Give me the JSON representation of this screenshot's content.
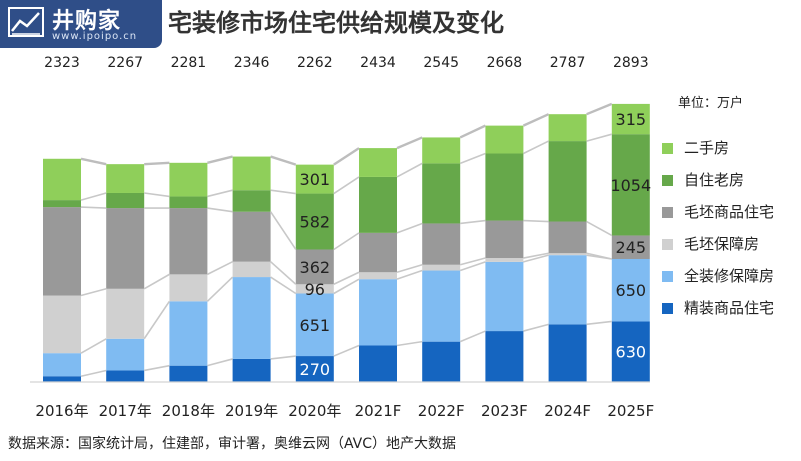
{
  "logo": {
    "text": "井购家",
    "sub": "www.ipoipo.cn"
  },
  "title": "宅装修市场住宅供给规模及变化",
  "unit_label": "单位：万户",
  "source_note": "数据来源：国家统计局，住建部，审计署，奥维云网（AVC）地产大数据",
  "chart_data": {
    "type": "bar",
    "stacked": true,
    "categories": [
      "2016年",
      "2017年",
      "2018年",
      "2019年",
      "2020年",
      "2021F",
      "2022F",
      "2023F",
      "2024F",
      "2025F"
    ],
    "totals": [
      2323,
      2267,
      2281,
      2346,
      2262,
      2434,
      2545,
      2668,
      2787,
      2893
    ],
    "series": [
      {
        "name": "精装商品住宅",
        "color": "#1565c0",
        "values": [
          60,
          120,
          170,
          240,
          270,
          380,
          420,
          530,
          600,
          630
        ]
      },
      {
        "name": "全装修保障房",
        "color": "#7fbbf2",
        "values": [
          240,
          330,
          670,
          852,
          651,
          690,
          740,
          720,
          720,
          650
        ]
      },
      {
        "name": "毛坯保障房",
        "color": "#d0d0d0",
        "values": [
          600,
          520,
          280,
          160,
          96,
          72,
          60,
          40,
          20,
          0
        ]
      },
      {
        "name": "毛坯商品住宅",
        "color": "#999999",
        "values": [
          920,
          840,
          690,
          520,
          362,
          410,
          430,
          390,
          330,
          245
        ]
      },
      {
        "name": "自住老房",
        "color": "#66a84a",
        "values": [
          73,
          157,
          121,
          224,
          582,
          582,
          625,
          698,
          837,
          1054
        ]
      },
      {
        "name": "二手房",
        "color": "#8fcf5a",
        "values": [
          430,
          300,
          350,
          350,
          301,
          300,
          270,
          290,
          280,
          315
        ]
      }
    ],
    "data_labels": [
      {
        "category": "2020年",
        "series": "精装商品住宅",
        "value": 270
      },
      {
        "category": "2020年",
        "series": "全装修保障房",
        "value": 651
      },
      {
        "category": "2020年",
        "series": "毛坯保障房",
        "value": 96
      },
      {
        "category": "2020年",
        "series": "毛坯商品住宅",
        "value": 362
      },
      {
        "category": "2020年",
        "series": "自住老房",
        "value": 582
      },
      {
        "category": "2020年",
        "series": "二手房",
        "value": 301
      },
      {
        "category": "2025F",
        "series": "精装商品住宅",
        "value": 630
      },
      {
        "category": "2025F",
        "series": "全装修保障房",
        "value": 650
      },
      {
        "category": "2025F",
        "series": "毛坯商品住宅",
        "value": 245
      },
      {
        "category": "2025F",
        "series": "自住老房",
        "value": 1054
      },
      {
        "category": "2025F",
        "series": "二手房",
        "value": 315
      }
    ],
    "ylim": [
      0,
      2893
    ],
    "grid": false,
    "legend_position": "right",
    "xlabel": "",
    "ylabel": ""
  }
}
